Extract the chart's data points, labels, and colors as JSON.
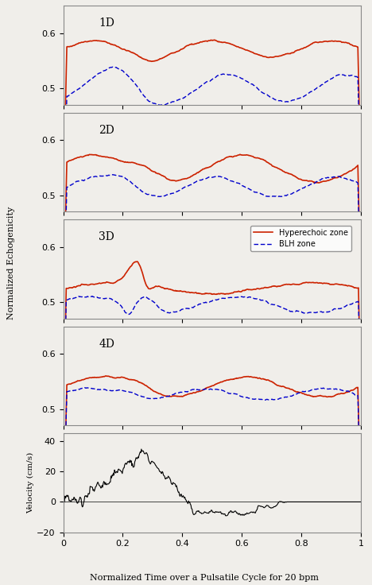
{
  "panels": [
    "1D",
    "2D",
    "3D",
    "4D"
  ],
  "xlim": [
    0,
    1
  ],
  "echogenicity_ylim": [
    0.47,
    0.65
  ],
  "echogenicity_yticks": [
    0.5,
    0.6
  ],
  "velocity_ylim": [
    -20,
    45
  ],
  "velocity_yticks": [
    -20,
    0,
    20,
    40
  ],
  "xlabel": "Normalized Time over a Pulsatile Cycle for 20 bpm",
  "ylabel_echo": "Normalized Echogenicity",
  "ylabel_vel": "Velocity (cm/s)",
  "hyperechoic_color": "#cc2200",
  "blh_color": "#0000cc",
  "velocity_color": "#000000",
  "background_color": "#f0eeea",
  "legend_labels": [
    "Hyperechoic zone",
    "BLH zone"
  ],
  "xticks": [
    0,
    0.2,
    0.4,
    0.6,
    0.8,
    1.0
  ],
  "xtick_labels": [
    "0",
    "0.2",
    "0.4",
    "0.6",
    "0.8",
    "1"
  ]
}
